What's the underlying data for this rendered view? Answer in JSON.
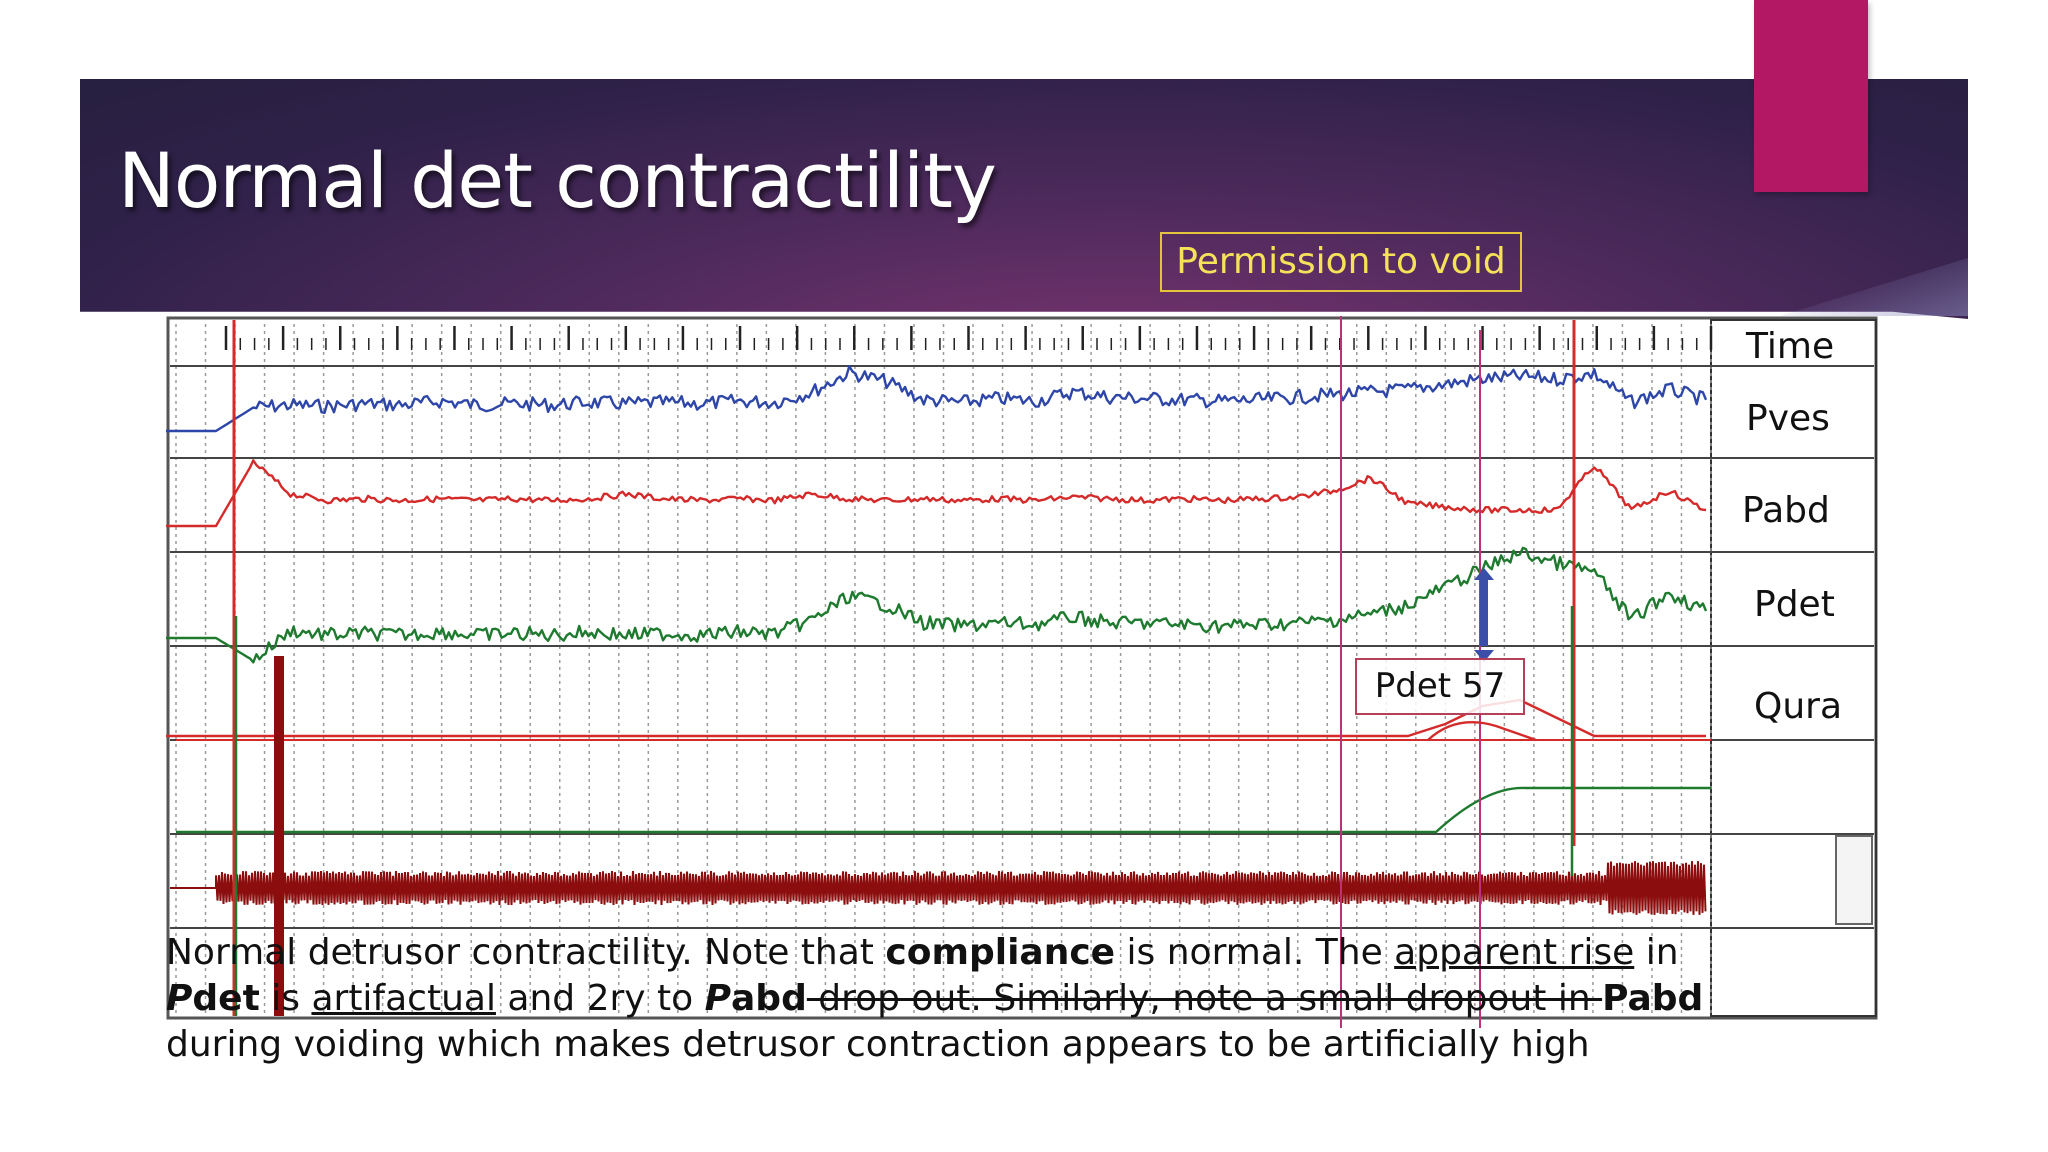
{
  "slide": {
    "title": "Normal det contractility"
  },
  "colors": {
    "accent_pink": "#b31864",
    "header_dark": "#2f2149",
    "pves": "#2e46a8",
    "pabd": "#d42a2a",
    "pdet": "#1e7a2e",
    "emg": "#8b0d0d",
    "marker_magenta": "#c0307a"
  },
  "chart_data": {
    "type": "line",
    "title": "Permission to void",
    "annotation": "Pdet 57",
    "channels": [
      "Time",
      "Pves",
      "Pabd",
      "Pdet",
      "Qura"
    ],
    "x": [
      0,
      1,
      2,
      3,
      4,
      5,
      6,
      7,
      8,
      9,
      10,
      11,
      12,
      13,
      14,
      15,
      16,
      17,
      18,
      19,
      20,
      21,
      22,
      23,
      24,
      25,
      26,
      27,
      28,
      29,
      30,
      31,
      32,
      33,
      34,
      35,
      36,
      37,
      38,
      39,
      40
    ],
    "series": [
      {
        "name": "Pves",
        "values": [
          0,
          18,
          20,
          19,
          21,
          20,
          23,
          20,
          21,
          20,
          22,
          21,
          22,
          21,
          23,
          22,
          30,
          45,
          38,
          24,
          22,
          25,
          23,
          30,
          26,
          25,
          24,
          23,
          24,
          26,
          28,
          30,
          32,
          36,
          40,
          42,
          40,
          44,
          22,
          32,
          24
        ]
      },
      {
        "name": "Pabd",
        "values": [
          0,
          40,
          20,
          16,
          17,
          16,
          17,
          16,
          17,
          16,
          17,
          20,
          17,
          16,
          17,
          16,
          20,
          17,
          16,
          17,
          16,
          17,
          16,
          18,
          17,
          16,
          17,
          16,
          17,
          18,
          22,
          30,
          14,
          12,
          10,
          10,
          10,
          38,
          10,
          22,
          10
        ]
      },
      {
        "name": "Pdet",
        "values": [
          0,
          -15,
          5,
          2,
          3,
          2,
          4,
          2,
          3,
          2,
          4,
          2,
          3,
          2,
          4,
          3,
          12,
          28,
          22,
          10,
          8,
          10,
          9,
          14,
          10,
          10,
          9,
          8,
          9,
          10,
          12,
          16,
          22,
          34,
          46,
          57,
          50,
          44,
          12,
          30,
          18
        ]
      },
      {
        "name": "Qura",
        "values": [
          0,
          0,
          0,
          0,
          0,
          0,
          0,
          0,
          0,
          0,
          0,
          0,
          0,
          0,
          0,
          0,
          0,
          0,
          0,
          0,
          0,
          0,
          0,
          0,
          0,
          0,
          0,
          0,
          0,
          0,
          0,
          0,
          0,
          4,
          10,
          12,
          6,
          0,
          0,
          0,
          0
        ]
      }
    ],
    "grid": true
  },
  "caption": {
    "p1": "Normal detrusor contractility. Note that ",
    "b1": "compliance",
    "p2": " is normal. The ",
    "u1": "apparent rise",
    "p3": " in ",
    "i1": "P",
    "b2": "det",
    "p4": " is ",
    "u2": "artifactual",
    "p5": " and 2ry to ",
    "i2": "P",
    "b3": "abd",
    "p6": " drop out. Similarly, note a small dropout in ",
    "b4": "Pabd",
    "p7": " during voiding which makes detrusor contraction appears to be artificially high"
  }
}
